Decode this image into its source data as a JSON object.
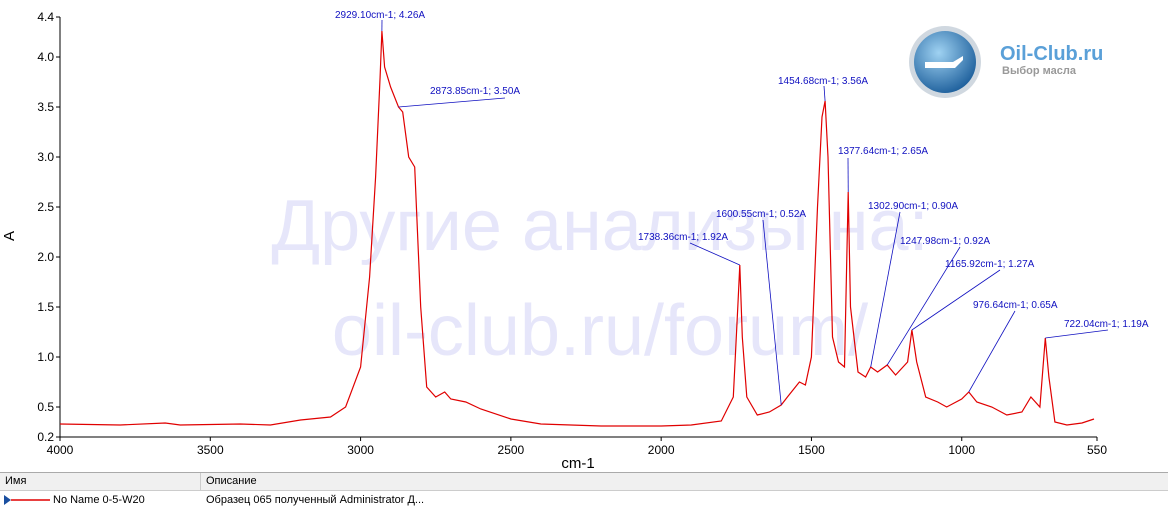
{
  "chart_data": {
    "type": "line",
    "x_label": "cm-1",
    "y_label": "A",
    "xlim": [
      4000,
      550
    ],
    "ylim": [
      0.2,
      4.4
    ],
    "xticks": [
      4000,
      3500,
      3000,
      2500,
      2000,
      1500,
      1000,
      550
    ],
    "yticks": [
      0.2,
      0.5,
      {
        "value": 1,
        "label": "1.0"
      },
      1.5,
      {
        "value": 2,
        "label": "2.0"
      },
      2.5,
      {
        "value": 3,
        "label": "3.0"
      },
      3.5,
      {
        "value": 4,
        "label": "4.0"
      },
      4.4
    ],
    "x": [
      4000,
      3800,
      3650,
      3600,
      3400,
      3300,
      3200,
      3100,
      3050,
      3000,
      2970,
      2950,
      2935,
      2929.1,
      2920,
      2900,
      2873.85,
      2860,
      2840,
      2820,
      2800,
      2780,
      2750,
      2720,
      2700,
      2650,
      2600,
      2500,
      2400,
      2200,
      2000,
      1900,
      1800,
      1760,
      1745,
      1738.36,
      1730,
      1715,
      1680,
      1640,
      1600.55,
      1580,
      1540,
      1520,
      1500,
      1480,
      1465,
      1454.68,
      1445,
      1430,
      1410,
      1390,
      1377.64,
      1370,
      1345,
      1320,
      1302.9,
      1280,
      1247.98,
      1220,
      1180,
      1165.92,
      1150,
      1120,
      1080,
      1050,
      1000,
      976.64,
      950,
      900,
      850,
      800,
      770,
      740,
      722.04,
      710,
      690,
      650,
      600,
      560
    ],
    "series": [
      {
        "name": "No Name 0-5-W20",
        "color": "#e00000",
        "values": [
          0.33,
          0.32,
          0.34,
          0.32,
          0.33,
          0.32,
          0.37,
          0.4,
          0.5,
          0.9,
          1.8,
          2.8,
          3.8,
          4.26,
          3.9,
          3.7,
          3.5,
          3.45,
          3.0,
          2.9,
          1.5,
          0.7,
          0.6,
          0.65,
          0.58,
          0.55,
          0.48,
          0.38,
          0.33,
          0.31,
          0.31,
          0.32,
          0.36,
          0.6,
          1.5,
          1.92,
          1.2,
          0.6,
          0.42,
          0.45,
          0.52,
          0.6,
          0.75,
          0.72,
          1.0,
          2.5,
          3.4,
          3.56,
          3.0,
          1.2,
          0.95,
          0.9,
          2.65,
          1.5,
          0.85,
          0.8,
          0.9,
          0.85,
          0.92,
          0.82,
          0.95,
          1.27,
          0.95,
          0.6,
          0.55,
          0.5,
          0.58,
          0.65,
          0.55,
          0.5,
          0.42,
          0.45,
          0.6,
          0.5,
          1.19,
          0.8,
          0.35,
          0.32,
          0.34,
          0.38
        ]
      }
    ],
    "annotations": [
      {
        "text": "2929.10cm-1; 4.26A",
        "x": 2929.1,
        "y": 4.26
      },
      {
        "text": "2873.85cm-1; 3.50A",
        "x": 2873.85,
        "y": 3.5
      },
      {
        "text": "1454.68cm-1; 3.56A",
        "x": 1454.68,
        "y": 3.56
      },
      {
        "text": "1377.64cm-1; 2.65A",
        "x": 1377.64,
        "y": 2.65
      },
      {
        "text": "1302.90cm-1; 0.90A",
        "x": 1302.9,
        "y": 0.9
      },
      {
        "text": "1247.98cm-1; 0.92A",
        "x": 1247.98,
        "y": 0.92
      },
      {
        "text": "1165.92cm-1; 1.27A",
        "x": 1165.92,
        "y": 1.27
      },
      {
        "text": "1600.55cm-1; 0.52A",
        "x": 1600.55,
        "y": 0.52
      },
      {
        "text": "1738.36cm-1; 1.92A",
        "x": 1738.36,
        "y": 1.92
      },
      {
        "text": "976.64cm-1; 0.65A",
        "x": 976.64,
        "y": 0.65
      },
      {
        "text": "722.04cm-1; 1.19A",
        "x": 722.04,
        "y": 1.19
      }
    ],
    "watermark": [
      "Другие анализы на:",
      "oil-club.ru/forum/"
    ]
  },
  "logo": {
    "title": "Oil-Club.ru",
    "subtitle": "Выбор масла"
  },
  "table": {
    "headers": [
      "Имя",
      "Описание"
    ],
    "description": "Образец 065 полученный Administrator Д..."
  }
}
